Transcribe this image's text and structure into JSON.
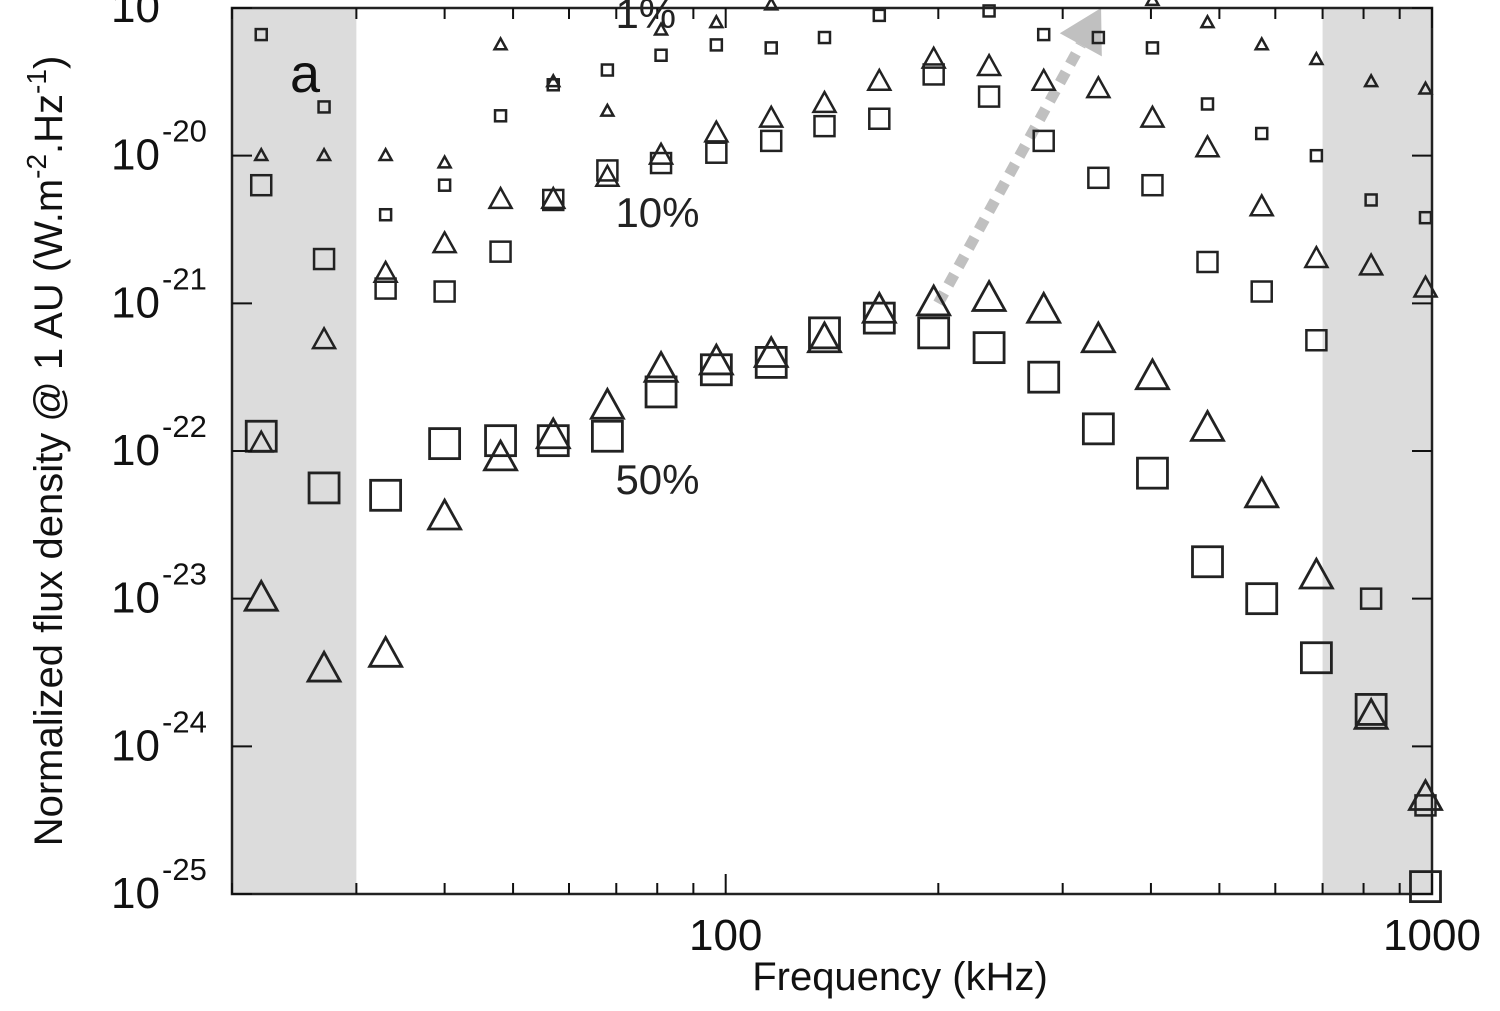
{
  "chart_data": {
    "type": "scatter",
    "panel_label": "a",
    "xlabel": "Frequency (kHz)",
    "ylabel_parts": [
      "Normalized flux density @ 1 AU (W.m",
      "-2",
      ".Hz",
      "-1",
      ")"
    ],
    "xscale": "log",
    "yscale": "log",
    "xlim": [
      20,
      1000
    ],
    "ylim": [
      1e-25,
      1e-19
    ],
    "x_ticks": [
      {
        "value": 100,
        "label": "100"
      },
      {
        "value": 1000,
        "label": "1000"
      }
    ],
    "y_ticks": [
      {
        "exp": -19,
        "base": "10",
        "sup": "-19"
      },
      {
        "exp": -20,
        "base": "10",
        "sup": "-20"
      },
      {
        "exp": -21,
        "base": "10",
        "sup": "-21"
      },
      {
        "exp": -22,
        "base": "10",
        "sup": "-22"
      },
      {
        "exp": -23,
        "base": "10",
        "sup": "-23"
      },
      {
        "exp": -24,
        "base": "10",
        "sup": "-24"
      },
      {
        "exp": -25,
        "base": "10",
        "sup": "-25"
      }
    ],
    "shaded_ranges": [
      [
        20,
        30
      ],
      [
        700,
        1000
      ]
    ],
    "shade_color": "#dcdcdc",
    "arrow_color": "#c0c0c0",
    "arrow": {
      "from": [
        200,
        1e-21
      ],
      "to": [
        340,
        1e-19
      ]
    },
    "annotations": [
      {
        "text": "1%",
        "x": 75,
        "y": 1e-19
      },
      {
        "text": "10%",
        "x": 75,
        "y": 4.5e-21
      },
      {
        "text": "50%",
        "x": 75,
        "y": 7e-23
      }
    ],
    "series": [
      {
        "marker": "triangle",
        "level": "1%",
        "size": "small",
        "x": [
          22,
          27,
          33,
          40,
          48,
          57,
          68,
          81,
          97,
          116,
          138,
          165,
          197,
          236,
          282,
          337,
          402,
          481,
          574,
          686,
          820,
          979
        ],
        "y": [
          -20.0,
          -20.0,
          -20.0,
          -20.05,
          -19.25,
          -19.5,
          -19.7,
          -19.15,
          -19.1,
          -18.98,
          -18.9,
          -18.78,
          -18.7,
          -18.72,
          -18.72,
          -18.78,
          -18.95,
          -19.1,
          -19.25,
          -19.35,
          -19.5,
          -19.55
        ]
      },
      {
        "marker": "square",
        "level": "1%",
        "size": "small",
        "x": [
          22,
          27,
          33,
          40,
          48,
          57,
          68,
          81,
          97,
          116,
          138,
          165,
          197,
          236,
          282,
          337,
          402,
          481,
          574,
          686,
          820,
          979
        ],
        "y": [
          -19.18,
          -19.67,
          -20.4,
          -20.2,
          -19.73,
          -19.52,
          -19.42,
          -19.32,
          -19.25,
          -19.27,
          -19.2,
          -19.05,
          -18.9,
          -19.02,
          -19.18,
          -19.2,
          -19.27,
          -19.65,
          -19.85,
          -20.0,
          -20.3,
          -20.42
        ]
      },
      {
        "marker": "triangle",
        "level": "10%",
        "size": "medium",
        "x": [
          22,
          27,
          33,
          40,
          48,
          57,
          68,
          81,
          97,
          116,
          138,
          165,
          197,
          236,
          282,
          337,
          402,
          481,
          574,
          686,
          820,
          979
        ],
        "y": [
          -21.95,
          -21.25,
          -20.8,
          -20.6,
          -20.3,
          -20.3,
          -20.15,
          -20.0,
          -19.85,
          -19.75,
          -19.65,
          -19.5,
          -19.35,
          -19.4,
          -19.5,
          -19.55,
          -19.75,
          -19.95,
          -20.35,
          -20.7,
          -20.75,
          -20.9
        ]
      },
      {
        "marker": "square",
        "level": "10%",
        "size": "medium",
        "x": [
          22,
          27,
          33,
          40,
          48,
          57,
          68,
          81,
          97,
          116,
          138,
          165,
          197,
          236,
          282,
          337,
          402,
          481,
          574,
          686,
          820,
          979
        ],
        "y": [
          -20.2,
          -20.7,
          -20.9,
          -20.92,
          -20.65,
          -20.3,
          -20.1,
          -20.05,
          -19.98,
          -19.9,
          -19.8,
          -19.75,
          -19.45,
          -19.6,
          -19.9,
          -20.15,
          -20.2,
          -20.72,
          -20.92,
          -21.25,
          -23.0,
          -24.4
        ]
      },
      {
        "marker": "triangle",
        "level": "50%",
        "size": "large",
        "x": [
          22,
          27,
          33,
          40,
          48,
          57,
          68,
          81,
          97,
          116,
          138,
          165,
          197,
          236,
          282,
          337,
          402,
          481,
          574,
          686,
          820,
          979
        ],
        "y": [
          -23.0,
          -23.48,
          -23.38,
          -22.45,
          -22.05,
          -21.9,
          -21.7,
          -21.45,
          -21.4,
          -21.35,
          -21.25,
          -21.05,
          -21.0,
          -20.97,
          -21.05,
          -21.25,
          -21.5,
          -21.85,
          -22.3,
          -22.85,
          -23.8,
          -24.35
        ]
      },
      {
        "marker": "square",
        "level": "50%",
        "size": "large",
        "x": [
          22,
          27,
          33,
          40,
          48,
          57,
          68,
          81,
          97,
          116,
          138,
          165,
          197,
          236,
          282,
          337,
          402,
          481,
          574,
          686,
          820,
          979
        ],
        "y": [
          -21.9,
          -22.25,
          -22.3,
          -21.95,
          -21.93,
          -21.93,
          -21.9,
          -21.6,
          -21.45,
          -21.4,
          -21.2,
          -21.1,
          -21.2,
          -21.3,
          -21.5,
          -21.85,
          -22.15,
          -22.75,
          -23.0,
          -23.4,
          -23.75,
          -24.95
        ]
      }
    ]
  }
}
